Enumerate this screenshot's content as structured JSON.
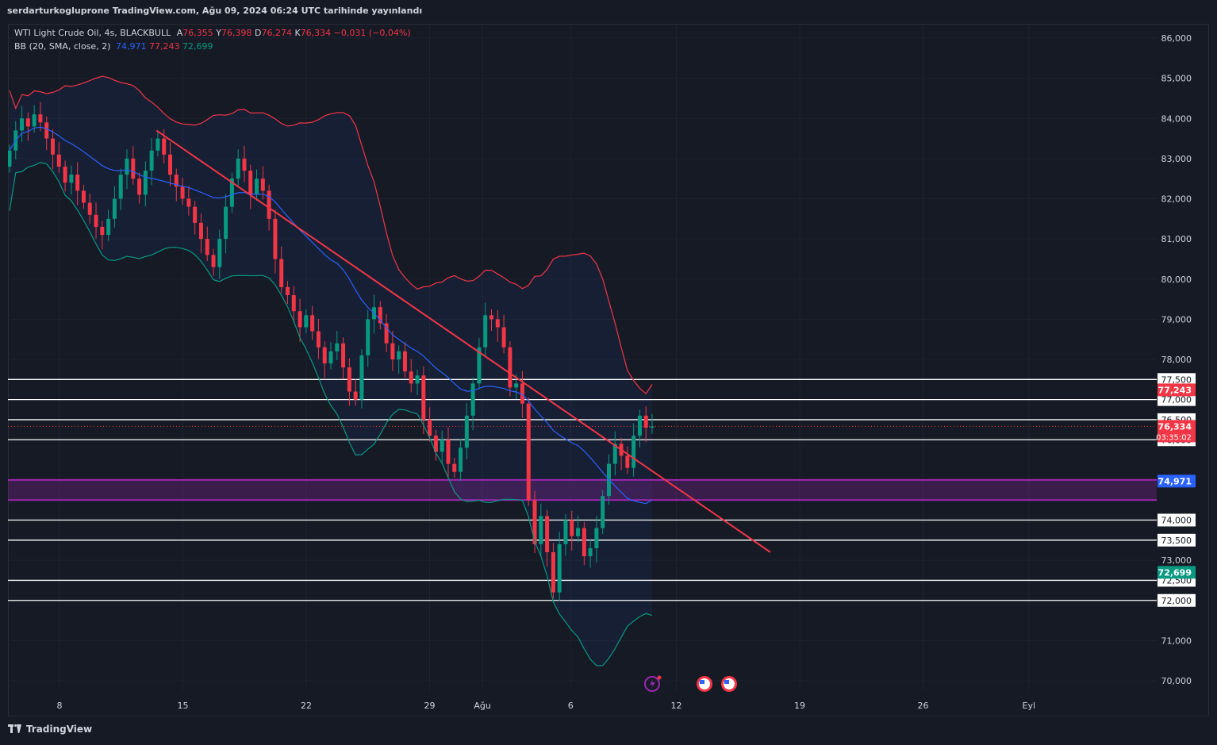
{
  "header": {
    "published_text": "serdarturkoglupronе TradingView.com, Ağu 09, 2024 06:24 UTC tarihinde yayınlandı"
  },
  "legend": {
    "symbol": "WTI Light Crude Oil, 4s, BLACKBULL",
    "o_label": "A",
    "o_value": "76,355",
    "h_label": "Y",
    "h_value": "76,398",
    "l_label": "D",
    "l_value": "76,274",
    "c_label": "K",
    "c_value": "76,334",
    "change": "−0,031 (−0,04%)",
    "bb_label": "BB (20, SMA, close, 2)",
    "bb_basis": "74,971",
    "bb_upper": "77,243",
    "bb_lower": "72,699"
  },
  "footer": {
    "brand": "TradingView"
  },
  "colors": {
    "background": "#161a25",
    "grid": "#1f2330",
    "up": "#089981",
    "down": "#f23645",
    "bb_upper": "#f23645",
    "bb_basis": "#2962ff",
    "bb_lower": "#089981",
    "trendline": "#f23645",
    "zone": "#9c27b0",
    "level": "#ffffff"
  },
  "chart_data": {
    "type": "candlestick",
    "y_axis": {
      "range": [
        69700,
        86500
      ],
      "tick_labels": [
        "86,000",
        "85,000",
        "84,000",
        "83,000",
        "82,000",
        "81,000",
        "80,000",
        "79,000",
        "78,000",
        "77,000",
        "76,500",
        "76,000",
        "73,000",
        "71,000",
        "70,000"
      ]
    },
    "x_axis": {
      "tick_labels": [
        "8",
        "15",
        "22",
        "29",
        "Ağu",
        "6",
        "12",
        "19",
        "26",
        "Eyl"
      ]
    },
    "horizontal_levels": [
      {
        "value": 77.5,
        "label": "77,500"
      },
      {
        "value": 77.0,
        "label": "77,000"
      },
      {
        "value": 76.5,
        "label": "76,500"
      },
      {
        "value": 76.0,
        "label": "76,000"
      },
      {
        "value": 74.0,
        "label": "74,000"
      },
      {
        "value": 73.5,
        "label": "73,500"
      },
      {
        "value": 72.5,
        "label": "72,500"
      },
      {
        "value": 72.0,
        "label": "72,000"
      }
    ],
    "zone": {
      "from": 74.5,
      "to": 75.0
    },
    "price_badges": [
      {
        "label": "77,243",
        "value": 77.243,
        "color": "#f23645"
      },
      {
        "label": "76,334",
        "value": 76.334,
        "color": "#f23645",
        "sub": "03:35:02"
      },
      {
        "label": "74,971",
        "value": 74.971,
        "color": "#2962ff"
      },
      {
        "label": "72,699",
        "value": 72.699,
        "color": "#089981"
      }
    ],
    "trendline": {
      "from": [
        "Jul 13",
        83.6
      ],
      "to": [
        "Aug 17",
        73.2
      ]
    },
    "candles_close": [
      83.2,
      83.7,
      84.0,
      83.8,
      84.1,
      83.9,
      83.5,
      83.1,
      82.8,
      82.4,
      82.6,
      82.2,
      81.9,
      81.6,
      81.3,
      81.1,
      81.5,
      82.0,
      82.6,
      83.0,
      82.5,
      82.1,
      82.7,
      83.2,
      83.5,
      83.1,
      82.6,
      82.3,
      82.0,
      81.8,
      81.4,
      81.0,
      80.6,
      80.3,
      81.0,
      81.8,
      82.5,
      83.0,
      82.7,
      82.1,
      82.5,
      82.2,
      81.5,
      80.5,
      79.8,
      79.6,
      79.2,
      78.8,
      79.1,
      78.7,
      78.3,
      77.9,
      78.2,
      78.4,
      77.8,
      77.2,
      77.0,
      78.1,
      79.0,
      79.3,
      78.9,
      78.4,
      78.0,
      78.2,
      77.7,
      77.4,
      77.6,
      76.5,
      76.1,
      75.7,
      76.0,
      75.4,
      75.2,
      75.8,
      76.6,
      77.4,
      78.3,
      79.1,
      79.0,
      78.8,
      78.3,
      77.3,
      77.4,
      76.9,
      74.5,
      73.4,
      74.1,
      73.2,
      72.2,
      73.4,
      74.0,
      73.6,
      73.8,
      73.1,
      73.3,
      73.8,
      74.6,
      75.4,
      75.9,
      75.6,
      75.3,
      76.1,
      76.6,
      76.3,
      76.33
    ],
    "bb_upper_curve": "upper band, red",
    "bb_basis_curve": "basis SMA(20), blue",
    "bb_lower_curve": "lower band, green"
  }
}
